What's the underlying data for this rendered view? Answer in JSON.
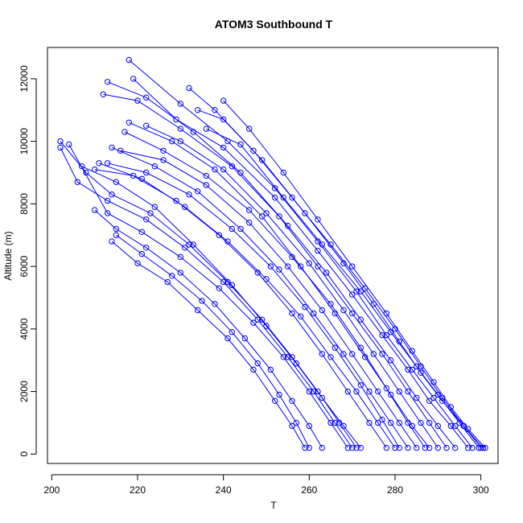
{
  "chart_data": {
    "type": "scatter",
    "title": "ATOM3 Southbound T",
    "xlabel": "T",
    "ylabel": "Altitude (m)",
    "xlim": [
      199,
      304
    ],
    "ylim": [
      -300,
      13000
    ],
    "xticks": [
      200,
      220,
      240,
      260,
      280,
      300
    ],
    "yticks": [
      0,
      2000,
      4000,
      6000,
      8000,
      10000,
      12000
    ],
    "grid": false,
    "legend": "none",
    "color": "#0000ff",
    "marker": "open-circle",
    "connected": true,
    "series": [
      {
        "points": [
          [
            301,
            200
          ],
          [
            297,
            800
          ],
          [
            293,
            1500
          ],
          [
            289,
            2300
          ],
          [
            284,
            3300
          ],
          [
            278,
            4500
          ],
          [
            270,
            6000
          ],
          [
            262,
            7500
          ],
          [
            254,
            9000
          ],
          [
            246,
            10400
          ],
          [
            240,
            11300
          ]
        ]
      },
      {
        "points": [
          [
            300.5,
            200
          ],
          [
            296,
            900
          ],
          [
            291,
            1800
          ],
          [
            286,
            2800
          ],
          [
            280,
            4000
          ],
          [
            273,
            5300
          ],
          [
            265,
            6700
          ],
          [
            256,
            8200
          ],
          [
            247,
            9700
          ],
          [
            238,
            11000
          ],
          [
            232,
            11700
          ]
        ]
      },
      {
        "points": [
          [
            300,
            200
          ],
          [
            296,
            900
          ],
          [
            291,
            1700
          ],
          [
            286,
            2600
          ],
          [
            281,
            3600
          ],
          [
            275,
            4800
          ],
          [
            268,
            6100
          ],
          [
            259,
            7700
          ],
          [
            249,
            9400
          ],
          [
            240,
            10700
          ],
          [
            234,
            11000
          ]
        ]
      },
      {
        "points": [
          [
            299.5,
            200
          ],
          [
            295,
            1000
          ],
          [
            290,
            1900
          ],
          [
            285,
            2800
          ],
          [
            279,
            3900
          ],
          [
            272,
            5200
          ],
          [
            263,
            6700
          ],
          [
            254,
            8200
          ],
          [
            244,
            9900
          ],
          [
            236,
            10400
          ]
        ]
      },
      {
        "points": [
          [
            298,
            200
          ],
          [
            294,
            900
          ],
          [
            289,
            1800
          ],
          [
            284,
            2700
          ],
          [
            278,
            3800
          ],
          [
            271,
            5200
          ],
          [
            262,
            6800
          ],
          [
            252,
            8500
          ],
          [
            241,
            10000
          ],
          [
            230,
            11200
          ],
          [
            218,
            12600
          ]
        ]
      },
      {
        "points": [
          [
            297,
            200
          ],
          [
            293,
            900
          ],
          [
            288,
            1700
          ],
          [
            283,
            2700
          ],
          [
            277,
            3800
          ],
          [
            270,
            5100
          ],
          [
            262,
            6500
          ],
          [
            252,
            8200
          ],
          [
            240,
            9800
          ],
          [
            229,
            10700
          ],
          [
            219,
            12000
          ]
        ]
      },
      {
        "points": [
          [
            294,
            200
          ],
          [
            290,
            900
          ],
          [
            285,
            1800
          ],
          [
            279,
            3000
          ],
          [
            272,
            4300
          ],
          [
            264,
            5800
          ],
          [
            255,
            7300
          ],
          [
            244,
            9000
          ],
          [
            233,
            10300
          ],
          [
            222,
            11400
          ],
          [
            213,
            11900
          ]
        ]
      },
      {
        "points": [
          [
            292,
            200
          ],
          [
            288,
            1000
          ],
          [
            283,
            2000
          ],
          [
            277,
            3200
          ],
          [
            270,
            4500
          ],
          [
            262,
            6000
          ],
          [
            253,
            7600
          ],
          [
            242,
            9200
          ],
          [
            230,
            10400
          ],
          [
            220,
            11300
          ],
          [
            212,
            11500
          ]
        ]
      },
      {
        "points": [
          [
            290,
            200
          ],
          [
            286,
            1000
          ],
          [
            281,
            2000
          ],
          [
            275,
            3200
          ],
          [
            268,
            4600
          ],
          [
            260,
            6100
          ],
          [
            250,
            7700
          ],
          [
            240,
            9100
          ],
          [
            230,
            10000
          ],
          [
            222,
            10500
          ]
        ]
      },
      {
        "points": [
          [
            288,
            200
          ],
          [
            284,
            900
          ],
          [
            279,
            1900
          ],
          [
            273,
            3100
          ],
          [
            266,
            4500
          ],
          [
            258,
            6000
          ],
          [
            249,
            7600
          ],
          [
            238,
            9100
          ],
          [
            228,
            10000
          ],
          [
            218,
            10600
          ]
        ]
      },
      {
        "points": [
          [
            287,
            200
          ],
          [
            283,
            1000
          ],
          [
            278,
            2100
          ],
          [
            272,
            3400
          ],
          [
            265,
            4800
          ],
          [
            256,
            6300
          ],
          [
            246,
            7800
          ],
          [
            236,
            8900
          ],
          [
            226,
            9700
          ],
          [
            217,
            10300
          ]
        ]
      },
      {
        "points": [
          [
            285,
            200
          ],
          [
            281,
            1000
          ],
          [
            276,
            2000
          ],
          [
            270,
            3200
          ],
          [
            263,
            4600
          ],
          [
            255,
            6000
          ],
          [
            246,
            7400
          ],
          [
            236,
            8600
          ],
          [
            226,
            9400
          ],
          [
            216,
            9700
          ]
        ]
      },
      {
        "points": [
          [
            283,
            200
          ],
          [
            279,
            1000
          ],
          [
            274,
            2000
          ],
          [
            268,
            3200
          ],
          [
            261,
            4500
          ],
          [
            253,
            5900
          ],
          [
            244,
            7200
          ],
          [
            234,
            8400
          ],
          [
            224,
            9200
          ],
          [
            214,
            9800
          ]
        ]
      },
      {
        "points": [
          [
            281,
            200
          ],
          [
            277,
            1100
          ],
          [
            272,
            2200
          ],
          [
            266,
            3400
          ],
          [
            259,
            4700
          ],
          [
            251,
            6000
          ],
          [
            242,
            7200
          ],
          [
            232,
            8300
          ],
          [
            222,
            9000
          ],
          [
            213,
            9300
          ]
        ]
      },
      {
        "points": [
          [
            280,
            200
          ],
          [
            276,
            1000
          ],
          [
            271,
            2000
          ],
          [
            265,
            3100
          ],
          [
            258,
            4400
          ],
          [
            250,
            5600
          ],
          [
            241,
            6800
          ],
          [
            231,
            7900
          ],
          [
            221,
            8800
          ],
          [
            211,
            9300
          ]
        ]
      },
      {
        "points": [
          [
            278,
            200
          ],
          [
            274,
            1000
          ],
          [
            269,
            2000
          ],
          [
            263,
            3200
          ],
          [
            256,
            4500
          ],
          [
            248,
            5800
          ],
          [
            239,
            7000
          ],
          [
            229,
            8100
          ],
          [
            219,
            8900
          ],
          [
            210,
            9100
          ]
        ]
      },
      {
        "points": [
          [
            272,
            200
          ],
          [
            268,
            900
          ],
          [
            263,
            1800
          ],
          [
            257,
            2900
          ],
          [
            250,
            4100
          ],
          [
            242,
            5400
          ],
          [
            233,
            6700
          ],
          [
            224,
            7900
          ],
          [
            215,
            8700
          ],
          [
            207,
            9200
          ]
        ]
      },
      {
        "points": [
          [
            271,
            200
          ],
          [
            267,
            1000
          ],
          [
            262,
            2000
          ],
          [
            256,
            3100
          ],
          [
            249,
            4300
          ],
          [
            241,
            5500
          ],
          [
            232,
            6700
          ],
          [
            223,
            7700
          ],
          [
            214,
            8300
          ],
          [
            208,
            9000
          ],
          [
            202,
            10000
          ]
        ]
      },
      {
        "points": [
          [
            270,
            200
          ],
          [
            266,
            1000
          ],
          [
            261,
            2000
          ],
          [
            255,
            3100
          ],
          [
            248,
            4300
          ],
          [
            240,
            5500
          ],
          [
            231,
            6600
          ],
          [
            222,
            7500
          ],
          [
            213,
            8100
          ],
          [
            206,
            8700
          ],
          [
            202,
            9800
          ]
        ]
      },
      {
        "points": [
          [
            269,
            200
          ],
          [
            265,
            1000
          ],
          [
            260,
            2000
          ],
          [
            254,
            3100
          ],
          [
            247,
            4200
          ],
          [
            239,
            5300
          ],
          [
            230,
            6300
          ],
          [
            221,
            7100
          ],
          [
            213,
            7700
          ],
          [
            204,
            9900
          ]
        ]
      },
      {
        "points": [
          [
            263,
            200
          ],
          [
            260,
            900
          ],
          [
            256,
            1700
          ],
          [
            251,
            2700
          ],
          [
            245,
            3700
          ],
          [
            238,
            4800
          ],
          [
            230,
            5800
          ],
          [
            222,
            6600
          ],
          [
            215,
            7200
          ],
          [
            210,
            7800
          ]
        ]
      },
      {
        "points": [
          [
            260,
            200
          ],
          [
            257,
            1000
          ],
          [
            253,
            1900
          ],
          [
            248,
            2900
          ],
          [
            242,
            3900
          ],
          [
            235,
            4900
          ],
          [
            228,
            5700
          ],
          [
            221,
            6400
          ],
          [
            215,
            7000
          ]
        ]
      },
      {
        "points": [
          [
            259,
            200
          ],
          [
            256,
            900
          ],
          [
            252,
            1700
          ],
          [
            247,
            2700
          ],
          [
            241,
            3700
          ],
          [
            234,
            4600
          ],
          [
            227,
            5500
          ],
          [
            220,
            6100
          ],
          [
            214,
            6800
          ]
        ]
      }
    ]
  }
}
